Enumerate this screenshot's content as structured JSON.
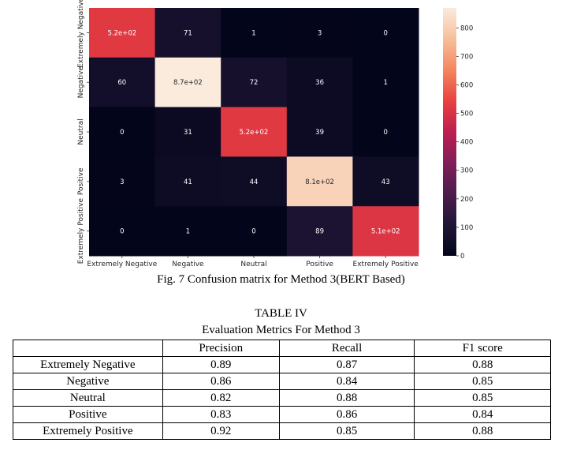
{
  "chart_data": {
    "type": "heatmap",
    "title": "",
    "xlabel": "",
    "ylabel": "",
    "x_categories": [
      "Extremely Negative",
      "Negative",
      "Neutral",
      "Positive",
      "Extremely Positive"
    ],
    "y_categories": [
      "Extremely Negative",
      "Negative",
      "Neutral",
      "Positive",
      "Extremely Positive"
    ],
    "values": [
      [
        520,
        71,
        1,
        3,
        0
      ],
      [
        60,
        870,
        72,
        36,
        1
      ],
      [
        0,
        31,
        520,
        39,
        0
      ],
      [
        3,
        41,
        44,
        810,
        43
      ],
      [
        0,
        1,
        0,
        89,
        510
      ]
    ],
    "cell_labels": [
      [
        "5.2e+02",
        "71",
        "1",
        "3",
        "0"
      ],
      [
        "60",
        "8.7e+02",
        "72",
        "36",
        "1"
      ],
      [
        "0",
        "31",
        "5.2e+02",
        "39",
        "0"
      ],
      [
        "3",
        "41",
        "44",
        "8.1e+02",
        "43"
      ],
      [
        "0",
        "1",
        "0",
        "89",
        "5.1e+02"
      ]
    ],
    "colorbar": {
      "range": [
        0,
        870
      ],
      "ticks": [
        0,
        100,
        200,
        300,
        400,
        500,
        600,
        700,
        800
      ],
      "tick_labels": [
        "0",
        "100",
        "200",
        "300",
        "400",
        "500",
        "600",
        "700",
        "800"
      ],
      "colormap": "rocket"
    }
  },
  "caption": "Fig. 7 Confusion matrix for Method 3(BERT Based)",
  "table": {
    "label": "TABLE IV",
    "title": "Evaluation Metrics For Method 3",
    "headers": [
      "",
      "Precision",
      "Recall",
      "F1 score"
    ],
    "rows": [
      [
        "Extremely Negative",
        "0.89",
        "0.87",
        "0.88"
      ],
      [
        "Negative",
        "0.86",
        "0.84",
        "0.85"
      ],
      [
        "Neutral",
        "0.82",
        "0.88",
        "0.85"
      ],
      [
        "Positive",
        "0.83",
        "0.86",
        "0.84"
      ],
      [
        "Extremely Positive",
        "0.92",
        "0.85",
        "0.88"
      ]
    ]
  }
}
